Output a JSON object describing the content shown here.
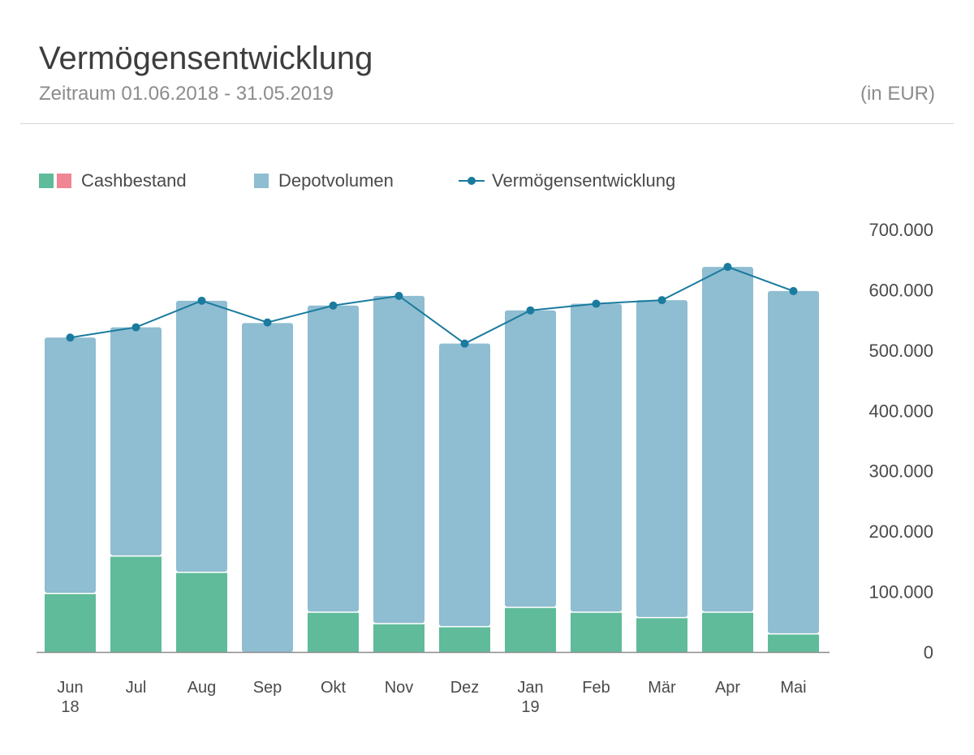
{
  "header": {
    "title": "Vermögensentwicklung",
    "subtitle": "Zeitraum 01.06.2018 - 31.05.2019",
    "unit": "(in EUR)"
  },
  "legend": {
    "cash_label": "Cashbestand",
    "depot_label": "Depotvolumen",
    "line_label": "Vermögensentwicklung"
  },
  "colors": {
    "cash_positive": "#5fbb9a",
    "cash_negative": "#f08593",
    "depot": "#8fbdd1",
    "line": "#1a7b9e",
    "axis": "#8c8c8c"
  },
  "chart_data": {
    "type": "bar",
    "stacked": true,
    "categories": [
      "Jun 18",
      "Jul",
      "Aug",
      "Sep",
      "Okt",
      "Nov",
      "Dez",
      "Jan 19",
      "Feb",
      "Mär",
      "Apr",
      "Mai"
    ],
    "category_lines": [
      [
        "Jun",
        "18"
      ],
      [
        "Jul"
      ],
      [
        "Aug"
      ],
      [
        "Sep"
      ],
      [
        "Okt"
      ],
      [
        "Nov"
      ],
      [
        "Dez"
      ],
      [
        "Jan",
        "19"
      ],
      [
        "Feb"
      ],
      [
        "Mär"
      ],
      [
        "Apr"
      ],
      [
        "Mai"
      ]
    ],
    "series": [
      {
        "name": "Cashbestand",
        "values": [
          98000,
          160000,
          133000,
          0,
          67000,
          48000,
          43000,
          75000,
          67000,
          58000,
          67000,
          31000
        ]
      },
      {
        "name": "Depotvolumen",
        "values": [
          423000,
          378000,
          449000,
          545000,
          507000,
          542000,
          468000,
          491000,
          510000,
          525000,
          571000,
          567000
        ]
      }
    ],
    "line": {
      "name": "Vermögensentwicklung",
      "values": [
        521000,
        538000,
        582000,
        546000,
        574000,
        590000,
        511000,
        566000,
        577000,
        583000,
        638000,
        598000
      ]
    },
    "y_ticks": [
      "0",
      "100.000",
      "200.000",
      "300.000",
      "400.000",
      "500.000",
      "600.000",
      "700.000"
    ],
    "y_tick_values": [
      0,
      100000,
      200000,
      300000,
      400000,
      500000,
      600000,
      700000
    ],
    "ylim": [
      0,
      700000
    ],
    "y_axis_side": "right",
    "grid": false,
    "legend_position": "top-left"
  }
}
